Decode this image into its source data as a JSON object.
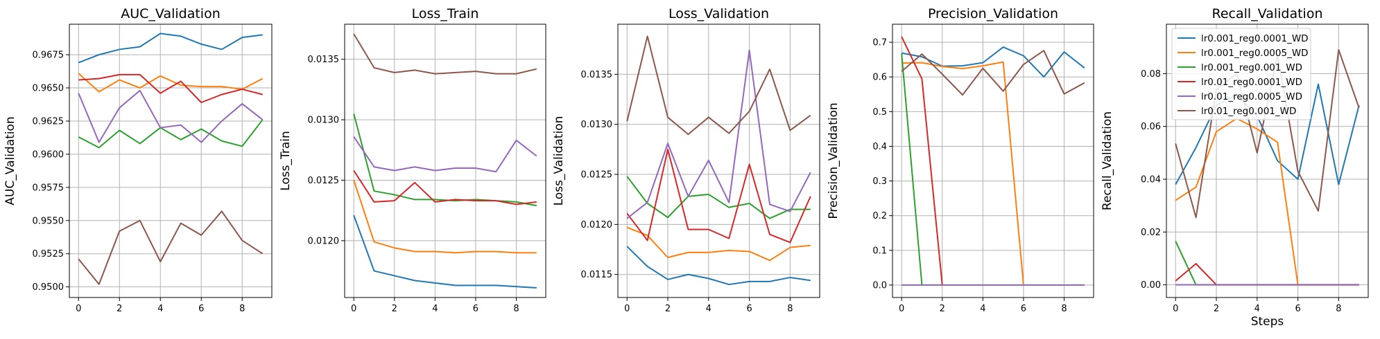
{
  "steps": [
    0,
    1,
    2,
    3,
    4,
    5,
    6,
    7,
    8,
    9
  ],
  "series_names": [
    "lr0.001_reg0.0001_WD",
    "lr0.001_reg0.0005_WD",
    "lr0.001_reg0.001_WD",
    "lr0.01_reg0.0001_WD",
    "lr0.01_reg0.0005_WD",
    "lr0.01_reg0.001_WD"
  ],
  "colors": [
    "#1f77b4",
    "#ff7f0e",
    "#2ca02c",
    "#d62728",
    "#9467bd",
    "#8c564b"
  ],
  "chart_data": [
    {
      "type": "line",
      "title": "AUC_Validation",
      "ylabel": "AUC_Validation",
      "xlabel": "",
      "x": [
        0,
        1,
        2,
        3,
        4,
        5,
        6,
        7,
        8,
        9
      ],
      "xlim": [
        -0.45,
        9.45
      ],
      "ylim": [
        0.9492,
        0.9698
      ],
      "xticks": [
        0,
        2,
        4,
        6,
        8
      ],
      "yticks": [
        0.95,
        0.9525,
        0.955,
        0.9575,
        0.96,
        0.9625,
        0.965,
        0.9675
      ],
      "ytick_labels": [
        "0.9500",
        "0.9525",
        "0.9550",
        "0.9575",
        "0.9600",
        "0.9625",
        "0.9650",
        "0.9675"
      ],
      "grid": true,
      "legend": false,
      "series": [
        {
          "values": [
            0.9669,
            0.9675,
            0.9679,
            0.9681,
            0.9691,
            0.9689,
            0.9683,
            0.9679,
            0.9688,
            0.969
          ]
        },
        {
          "values": [
            0.9661,
            0.9647,
            0.9656,
            0.965,
            0.9659,
            0.9652,
            0.9651,
            0.9651,
            0.9649,
            0.9657
          ]
        },
        {
          "values": [
            0.9613,
            0.9605,
            0.9618,
            0.9608,
            0.962,
            0.9611,
            0.9619,
            0.961,
            0.9606,
            0.9626
          ]
        },
        {
          "values": [
            0.9656,
            0.9657,
            0.966,
            0.966,
            0.9646,
            0.9655,
            0.9639,
            0.9645,
            0.9649,
            0.9645
          ]
        },
        {
          "values": [
            0.9646,
            0.9609,
            0.9635,
            0.9648,
            0.962,
            0.9622,
            0.9609,
            0.9625,
            0.9638,
            0.9626
          ]
        },
        {
          "values": [
            0.9521,
            0.9502,
            0.9542,
            0.955,
            0.9519,
            0.9548,
            0.9539,
            0.9557,
            0.9535,
            0.9525
          ]
        }
      ]
    },
    {
      "type": "line",
      "title": "Loss_Train",
      "ylabel": "Loss_Train",
      "xlabel": "",
      "x": [
        0,
        1,
        2,
        3,
        4,
        5,
        6,
        7,
        8,
        9
      ],
      "xlim": [
        -0.45,
        9.45
      ],
      "ylim": [
        0.01153,
        0.01379
      ],
      "xticks": [
        0,
        2,
        4,
        6,
        8
      ],
      "yticks": [
        0.012,
        0.0125,
        0.013,
        0.0135
      ],
      "ytick_labels": [
        "0.0120",
        "0.0125",
        "0.0130",
        "0.0135"
      ],
      "grid": true,
      "legend": false,
      "series": [
        {
          "values": [
            0.01221,
            0.01175,
            0.01171,
            0.01167,
            0.01165,
            0.01163,
            0.01163,
            0.01163,
            0.01162,
            0.01161
          ]
        },
        {
          "values": [
            0.0125,
            0.01199,
            0.01194,
            0.01191,
            0.01191,
            0.0119,
            0.01191,
            0.01191,
            0.0119,
            0.0119
          ]
        },
        {
          "values": [
            0.01305,
            0.01241,
            0.01238,
            0.01234,
            0.01234,
            0.01233,
            0.01234,
            0.01233,
            0.01232,
            0.01229
          ]
        },
        {
          "values": [
            0.01258,
            0.01232,
            0.01233,
            0.01248,
            0.01232,
            0.01234,
            0.01233,
            0.01233,
            0.0123,
            0.01232
          ]
        },
        {
          "values": [
            0.01286,
            0.01261,
            0.01258,
            0.01261,
            0.01258,
            0.0126,
            0.0126,
            0.01257,
            0.01283,
            0.0127
          ]
        },
        {
          "values": [
            0.01371,
            0.01343,
            0.01339,
            0.01341,
            0.01338,
            0.01339,
            0.0134,
            0.01338,
            0.01338,
            0.01342
          ]
        }
      ]
    },
    {
      "type": "line",
      "title": "Loss_Validation",
      "ylabel": "Loss_Validation",
      "xlabel": "",
      "x": [
        0,
        1,
        2,
        3,
        4,
        5,
        6,
        7,
        8,
        9
      ],
      "xlim": [
        -0.45,
        9.45
      ],
      "ylim": [
        0.01127,
        0.014
      ],
      "xticks": [
        0,
        2,
        4,
        6,
        8
      ],
      "yticks": [
        0.0115,
        0.012,
        0.0125,
        0.013,
        0.0135
      ],
      "ytick_labels": [
        "0.0115",
        "0.0120",
        "0.0125",
        "0.0130",
        "0.0135"
      ],
      "grid": true,
      "legend": false,
      "series": [
        {
          "values": [
            0.01178,
            0.01158,
            0.01145,
            0.0115,
            0.01146,
            0.0114,
            0.01143,
            0.01143,
            0.01147,
            0.01144
          ]
        },
        {
          "values": [
            0.01197,
            0.01189,
            0.01167,
            0.01172,
            0.01172,
            0.01174,
            0.01173,
            0.01164,
            0.01177,
            0.01179
          ]
        },
        {
          "values": [
            0.01248,
            0.01221,
            0.01207,
            0.01228,
            0.0123,
            0.01217,
            0.01221,
            0.01206,
            0.01215,
            0.01215
          ]
        },
        {
          "values": [
            0.01211,
            0.01184,
            0.01275,
            0.01195,
            0.01195,
            0.01186,
            0.0126,
            0.0119,
            0.01182,
            0.01228
          ]
        },
        {
          "values": [
            0.01206,
            0.01222,
            0.01281,
            0.01228,
            0.01264,
            0.01222,
            0.01374,
            0.0122,
            0.01213,
            0.01252
          ]
        },
        {
          "values": [
            0.01303,
            0.01388,
            0.01307,
            0.0129,
            0.01307,
            0.01291,
            0.01313,
            0.01355,
            0.01294,
            0.01309
          ]
        }
      ]
    },
    {
      "type": "line",
      "title": "Precision_Validation",
      "ylabel": "Precision_Validation",
      "xlabel": "",
      "x": [
        0,
        1,
        2,
        3,
        4,
        5,
        6,
        7,
        8,
        9
      ],
      "xlim": [
        -0.45,
        9.45
      ],
      "ylim": [
        -0.036,
        0.752
      ],
      "xticks": [
        0,
        2,
        4,
        6,
        8
      ],
      "yticks": [
        0,
        0.1,
        0.2,
        0.3,
        0.4,
        0.5,
        0.6,
        0.7
      ],
      "ytick_labels": [
        "0.0",
        "0.1",
        "0.2",
        "0.3",
        "0.4",
        "0.5",
        "0.6",
        "0.7"
      ],
      "grid": true,
      "legend": false,
      "series": [
        {
          "values": [
            0.669,
            0.658,
            0.631,
            0.632,
            0.641,
            0.686,
            0.661,
            0.6,
            0.672,
            0.626
          ]
        },
        {
          "values": [
            0.64,
            0.641,
            0.63,
            0.624,
            0.632,
            0.643,
            0,
            0,
            0,
            0
          ]
        },
        {
          "values": [
            0.667,
            0,
            0,
            0,
            0,
            0,
            0,
            0,
            0,
            0
          ]
        },
        {
          "values": [
            0.716,
            0.594,
            0,
            0,
            0,
            0,
            0,
            0,
            0,
            0
          ]
        },
        {
          "values": [
            0,
            0,
            0,
            0,
            0,
            0,
            0,
            0,
            0,
            0
          ]
        },
        {
          "values": [
            0.616,
            0.666,
            0.608,
            0.548,
            0.625,
            0.559,
            0.636,
            0.676,
            0.551,
            0.583
          ]
        }
      ]
    },
    {
      "type": "line",
      "title": "Recall_Validation",
      "ylabel": "Recall_Validation",
      "xlabel": "Steps",
      "x": [
        0,
        1,
        2,
        3,
        4,
        5,
        6,
        7,
        8,
        9
      ],
      "xlim": [
        -0.45,
        9.45
      ],
      "ylim": [
        -0.0048,
        0.0987
      ],
      "xticks": [
        0,
        2,
        4,
        6,
        8
      ],
      "yticks": [
        0,
        0.02,
        0.04,
        0.06,
        0.08
      ],
      "ytick_labels": [
        "0.00",
        "0.02",
        "0.04",
        "0.06",
        "0.08"
      ],
      "grid": true,
      "legend": true,
      "legend_position": "top-left",
      "series": [
        {
          "values": [
            0.038,
            0.052,
            0.068,
            0.072,
            0.064,
            0.047,
            0.04,
            0.076,
            0.038,
            0.068
          ]
        },
        {
          "values": [
            0.032,
            0.037,
            0.058,
            0.063,
            0.059,
            0.054,
            0,
            0,
            0,
            0
          ]
        },
        {
          "values": [
            0.0165,
            0,
            0,
            0,
            0,
            0,
            0,
            0,
            0,
            0
          ]
        },
        {
          "values": [
            0.0015,
            0.008,
            0,
            0,
            0,
            0,
            0,
            0,
            0,
            0
          ]
        },
        {
          "values": [
            0,
            0,
            0,
            0,
            0,
            0,
            0,
            0,
            0,
            0
          ]
        },
        {
          "values": [
            0.0535,
            0.0255,
            0.074,
            0.08,
            0.05,
            0.087,
            0.043,
            0.028,
            0.089,
            0.067
          ]
        }
      ]
    }
  ]
}
